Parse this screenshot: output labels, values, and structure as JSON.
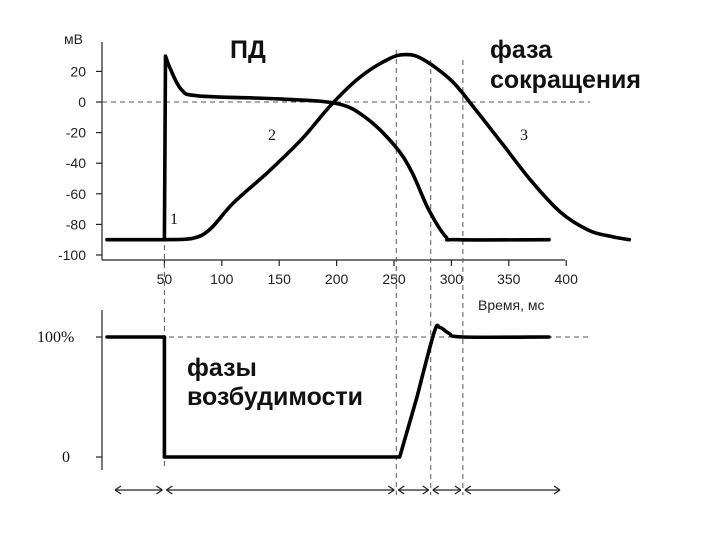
{
  "chart_data": {
    "type": "line",
    "top_panel": {
      "title_ap": "ПД",
      "title_contraction": "фаза сокращения",
      "y_unit": "мВ",
      "x_label": "Время, мс",
      "y_ticks": [
        "20",
        "0",
        "-20",
        "-40",
        "-60",
        "-80",
        "-100"
      ],
      "x_ticks": [
        "50",
        "100",
        "150",
        "200",
        "250",
        "300",
        "350",
        "400"
      ],
      "curve_labels": [
        "1",
        "2",
        "3"
      ],
      "series": [
        {
          "id": "action-potential",
          "points": [
            [
              0,
              -90
            ],
            [
              50,
              -90
            ],
            [
              51,
              30
            ],
            [
              55,
              22
            ],
            [
              65,
              8
            ],
            [
              80,
              4
            ],
            [
              150,
              2
            ],
            [
              200,
              -1
            ],
            [
              225,
              -10
            ],
            [
              250,
              -28
            ],
            [
              265,
              -45
            ],
            [
              280,
              -70
            ],
            [
              295,
              -88
            ],
            [
              305,
              -90
            ],
            [
              385,
              -90
            ]
          ]
        },
        {
          "id": "contraction",
          "points": [
            [
              50,
              -90
            ],
            [
              75,
              -89
            ],
            [
              90,
              -83
            ],
            [
              110,
              -66
            ],
            [
              140,
              -46
            ],
            [
              170,
              -24
            ],
            [
              195,
              -2
            ],
            [
              220,
              16
            ],
            [
              245,
              28
            ],
            [
              260,
              31
            ],
            [
              275,
              28
            ],
            [
              300,
              14
            ],
            [
              320,
              -4
            ],
            [
              345,
              -28
            ],
            [
              370,
              -52
            ],
            [
              395,
              -72
            ],
            [
              420,
              -84
            ],
            [
              440,
              -88
            ],
            [
              455,
              -90
            ]
          ]
        }
      ]
    },
    "bottom_panel": {
      "title": "фазы возбудимости",
      "y_ticks": [
        "100%",
        "0"
      ],
      "series": [
        {
          "id": "excitability",
          "points": [
            [
              0,
              100
            ],
            [
              50,
              100
            ],
            [
              50,
              0
            ],
            [
              255,
              0
            ],
            [
              270,
              50
            ],
            [
              285,
              104
            ],
            [
              290,
              108
            ],
            [
              298,
              103
            ],
            [
              310,
              100
            ],
            [
              385,
              100
            ]
          ]
        }
      ]
    }
  }
}
